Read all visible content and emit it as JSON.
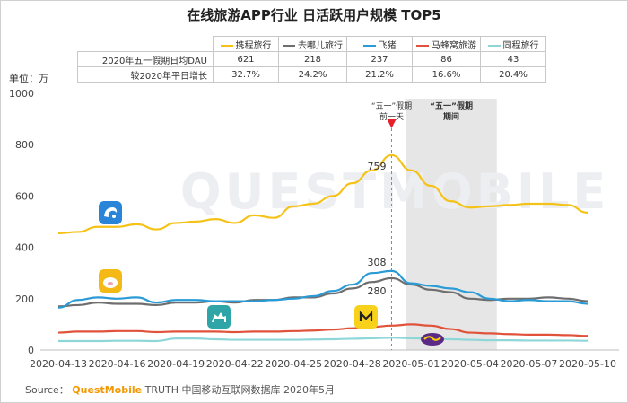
{
  "title": "在线旅游APP行业 日活跃用户规模 TOP5",
  "unit_label": "单位：万",
  "table": {
    "row_labels": [
      "2020年五一假期日均DAU",
      "较2020年平日增长"
    ],
    "apps": [
      {
        "name": "携程旅行",
        "color": "#f5c218",
        "dau": "621",
        "growth": "32.7%"
      },
      {
        "name": "去哪儿旅行",
        "color": "#6e6e6e",
        "dau": "218",
        "growth": "24.2%"
      },
      {
        "name": "飞猪",
        "color": "#2b9bd6",
        "dau": "237",
        "growth": "21.2%"
      },
      {
        "name": "马蜂窝旅游",
        "color": "#e0523a",
        "dau": "86",
        "growth": "16.6%"
      },
      {
        "name": "同程旅行",
        "color": "#8fd6d8",
        "dau": "43",
        "growth": "20.4%"
      }
    ]
  },
  "annotations": {
    "pre_holiday": [
      "“五一”假期",
      "前一天"
    ],
    "holiday": [
      "“五一”假期",
      "期间"
    ]
  },
  "data_labels": [
    "759",
    "308",
    "280"
  ],
  "watermark": "QUESTMOBILE",
  "source": {
    "prefix": "Source：",
    "brand": "QuestMobile",
    "rest": "TRUTH 中国移动互联网数据库 2020年5月"
  },
  "chart_data": {
    "type": "line",
    "title": "在线旅游APP行业 日活跃用户规模 TOP5",
    "ylabel": "单位：万",
    "ylim": [
      0,
      1000
    ],
    "yticks": [
      0,
      200,
      400,
      600,
      800,
      1000
    ],
    "x": [
      "2020-04-13",
      "2020-04-14",
      "2020-04-15",
      "2020-04-16",
      "2020-04-17",
      "2020-04-18",
      "2020-04-19",
      "2020-04-20",
      "2020-04-21",
      "2020-04-22",
      "2020-04-23",
      "2020-04-24",
      "2020-04-25",
      "2020-04-26",
      "2020-04-27",
      "2020-04-28",
      "2020-04-29",
      "2020-04-30",
      "2020-05-01",
      "2020-05-02",
      "2020-05-03",
      "2020-05-04",
      "2020-05-05",
      "2020-05-06",
      "2020-05-07",
      "2020-05-08",
      "2020-05-09",
      "2020-05-10"
    ],
    "xtick_labels": [
      "2020-04-13",
      "2020-04-16",
      "2020-04-19",
      "2020-04-22",
      "2020-04-25",
      "2020-04-28",
      "2020-05-01",
      "2020-05-04",
      "2020-05-07",
      "2020-05-10"
    ],
    "highlight": {
      "from": "2020-05-01",
      "to": "2020-05-05",
      "label": "“五一”假期期间"
    },
    "marker": {
      "x": "2020-04-30",
      "label": "“五一”假期前一天"
    },
    "grid": false,
    "legend": "top",
    "series": [
      {
        "name": "携程旅行",
        "color": "#f5c218",
        "values": [
          455,
          460,
          480,
          480,
          490,
          470,
          495,
          500,
          510,
          495,
          525,
          515,
          560,
          570,
          600,
          650,
          700,
          759,
          700,
          640,
          580,
          555,
          560,
          565,
          570,
          570,
          565,
          535
        ]
      },
      {
        "name": "去哪儿旅行",
        "color": "#6e6e6e",
        "values": [
          170,
          175,
          185,
          180,
          180,
          175,
          185,
          185,
          190,
          185,
          195,
          195,
          205,
          205,
          220,
          240,
          265,
          280,
          255,
          235,
          225,
          200,
          195,
          200,
          200,
          205,
          200,
          190
        ]
      },
      {
        "name": "飞猪",
        "color": "#2b9bd6",
        "values": [
          165,
          195,
          205,
          200,
          205,
          185,
          195,
          195,
          190,
          190,
          190,
          195,
          200,
          210,
          230,
          255,
          300,
          308,
          260,
          250,
          240,
          225,
          200,
          190,
          195,
          190,
          190,
          180
        ]
      },
      {
        "name": "马蜂窝旅游",
        "color": "#e0523a",
        "values": [
          68,
          72,
          72,
          74,
          74,
          70,
          72,
          72,
          72,
          70,
          72,
          72,
          74,
          76,
          80,
          85,
          90,
          95,
          100,
          95,
          82,
          68,
          65,
          62,
          60,
          60,
          58,
          55
        ]
      },
      {
        "name": "同程旅行",
        "color": "#8fd6d8",
        "values": [
          35,
          35,
          35,
          36,
          36,
          35,
          45,
          45,
          42,
          40,
          40,
          40,
          40,
          41,
          42,
          44,
          46,
          48,
          46,
          44,
          42,
          40,
          38,
          38,
          37,
          37,
          37,
          36
        ]
      }
    ]
  }
}
